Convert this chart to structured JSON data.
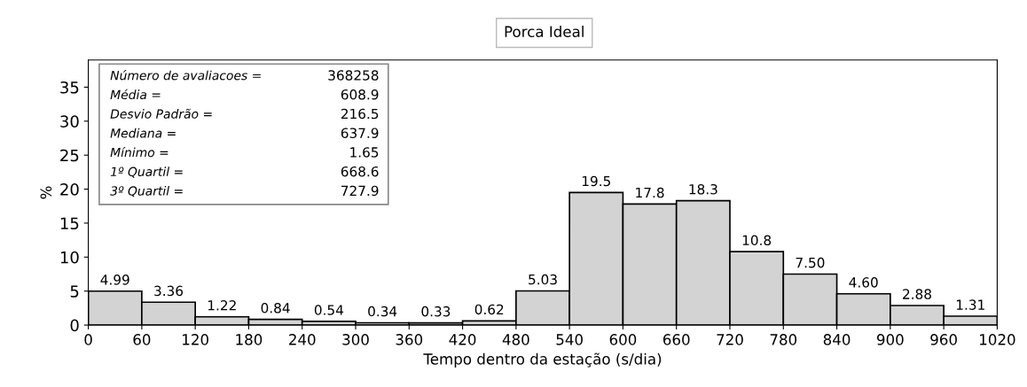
{
  "chart_data": {
    "type": "histogram",
    "title": "Porca Ideal",
    "xlabel": "Tempo dentro da estação (s/dia)",
    "ylabel": "%",
    "bins": [
      0,
      60,
      120,
      180,
      240,
      300,
      360,
      420,
      480,
      540,
      600,
      660,
      720,
      780,
      840,
      900,
      960,
      1020
    ],
    "values": [
      4.99,
      3.36,
      1.22,
      0.84,
      0.54,
      0.34,
      0.33,
      0.62,
      5.03,
      19.5,
      17.8,
      18.3,
      10.8,
      7.5,
      4.6,
      2.88,
      1.31
    ],
    "value_labels": [
      "4.99",
      "3.36",
      "1.22",
      "0.84",
      "0.54",
      "0.34",
      "0.33",
      "0.62",
      "5.03",
      "19.5",
      "17.8",
      "18.3",
      "10.8",
      "7.50",
      "4.60",
      "2.88",
      "1.31"
    ],
    "color": "#d3d3d3",
    "xlim": [
      0,
      1020
    ],
    "xticks": [
      0,
      60,
      120,
      180,
      240,
      300,
      360,
      420,
      480,
      540,
      600,
      660,
      720,
      780,
      840,
      900,
      960,
      1020
    ],
    "ylim": [
      0,
      39
    ],
    "yticks": [
      0,
      5,
      10,
      15,
      20,
      25,
      30,
      35
    ],
    "grid": false,
    "legend": false,
    "annotations": [
      "Número de avaliacoes =",
      "368258",
      "Média =",
      "608.9",
      "Desvio Padrão =",
      "216.5",
      "Mediana =",
      "637.9",
      "Mínimo =",
      "1.65",
      "1º Quartil =",
      "668.6",
      "3º Quartil =",
      "727.9"
    ]
  }
}
